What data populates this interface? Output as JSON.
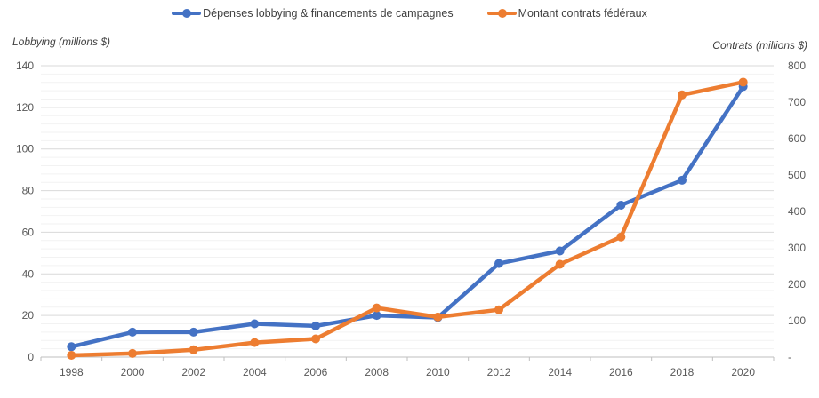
{
  "chart_data": {
    "type": "line",
    "title": "",
    "legend_position": "top",
    "x": [
      "1998",
      "2000",
      "2002",
      "2004",
      "2006",
      "2008",
      "2010",
      "2012",
      "2014",
      "2016",
      "2018",
      "2020"
    ],
    "series": [
      {
        "name": "Dépenses lobbying & financements de campagnes",
        "axis": "left",
        "color": "#4472C4",
        "values": [
          5,
          12,
          12,
          16,
          15,
          20,
          19,
          45,
          51,
          73,
          85,
          130
        ]
      },
      {
        "name": "Montant contrats fédéraux",
        "axis": "right",
        "color": "#ED7D31",
        "values": [
          5,
          10,
          20,
          40,
          50,
          135,
          110,
          130,
          255,
          330,
          720,
          755
        ]
      }
    ],
    "axes": {
      "left": {
        "title": "Lobbying (millions $)",
        "min": 0,
        "max": 140,
        "tick_step": 20,
        "ticks": [
          "0",
          "20",
          "40",
          "60",
          "80",
          "100",
          "120",
          "140"
        ]
      },
      "right": {
        "title": "Contrats (millions $)",
        "min": 0,
        "max": 800,
        "tick_step": 100,
        "ticks": [
          "-",
          "100",
          "200",
          "300",
          "400",
          "500",
          "600",
          "700",
          "800"
        ]
      }
    },
    "grid": {
      "major_color": "#D9D9D9",
      "minor_color": "#F2F2F2",
      "axis_color": "#BFBFBF",
      "minor_per_major": 5
    }
  }
}
